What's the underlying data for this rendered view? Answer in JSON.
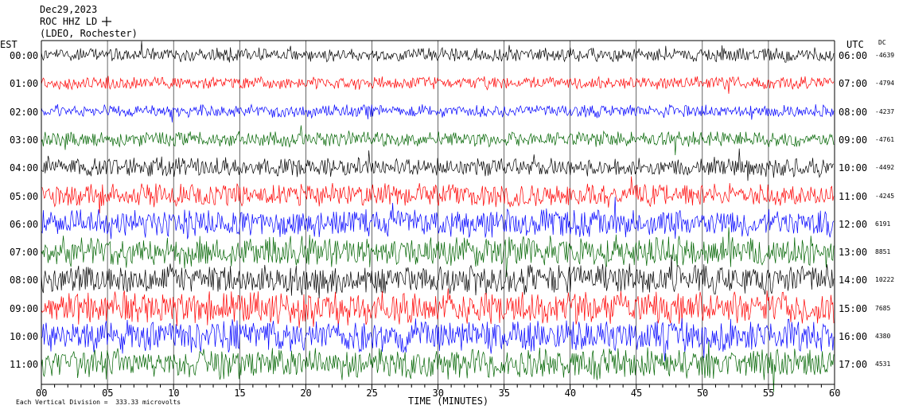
{
  "header": {
    "date": "Dec29,2023",
    "station": "ROC HHZ LD",
    "network": "(LDEO, Rochester)"
  },
  "left_label": "EST",
  "right_label": "UTC",
  "dc_label": "DC",
  "footer": {
    "scale_note": "Each Vertical Division =  333.33 microvolts",
    "xlabel": "TIME (MINUTES)"
  },
  "colors": {
    "trace_cycle": [
      "#000000",
      "#ff0000",
      "#0000ff",
      "#006400"
    ],
    "frame": "#000000"
  },
  "chart_data": {
    "type": "line",
    "title": "Dec29,2023",
    "xlabel": "TIME (MINUTES)",
    "xlim": [
      0,
      60
    ],
    "xticks": [
      "00",
      "05",
      "10",
      "15",
      "20",
      "25",
      "30",
      "35",
      "40",
      "45",
      "50",
      "55",
      "60"
    ],
    "rows": [
      {
        "est": "00:00",
        "utc": "06:00",
        "dc": "-4639",
        "color": "#000000",
        "amp": 0.55
      },
      {
        "est": "01:00",
        "utc": "07:00",
        "dc": "-4794",
        "color": "#ff0000",
        "amp": 0.5
      },
      {
        "est": "02:00",
        "utc": "08:00",
        "dc": "-4237",
        "color": "#0000ff",
        "amp": 0.5
      },
      {
        "est": "03:00",
        "utc": "09:00",
        "dc": "-4761",
        "color": "#006400",
        "amp": 0.6
      },
      {
        "est": "04:00",
        "utc": "10:00",
        "dc": "-4492",
        "color": "#000000",
        "amp": 0.75
      },
      {
        "est": "05:00",
        "utc": "11:00",
        "dc": "-4245",
        "color": "#ff0000",
        "amp": 0.9
      },
      {
        "est": "06:00",
        "utc": "12:00",
        "dc": "6191",
        "color": "#0000ff",
        "amp": 1.1
      },
      {
        "est": "07:00",
        "utc": "13:00",
        "dc": "8851",
        "color": "#006400",
        "amp": 1.2
      },
      {
        "est": "08:00",
        "utc": "14:00",
        "dc": "10222",
        "color": "#000000",
        "amp": 1.2
      },
      {
        "est": "09:00",
        "utc": "15:00",
        "dc": "7685",
        "color": "#ff0000",
        "amp": 1.3
      },
      {
        "est": "10:00",
        "utc": "16:00",
        "dc": "4380",
        "color": "#0000ff",
        "amp": 1.3
      },
      {
        "est": "11:00",
        "utc": "17:00",
        "dc": "4531",
        "color": "#006400",
        "amp": 1.2
      }
    ],
    "legend": "none",
    "grid": true
  }
}
